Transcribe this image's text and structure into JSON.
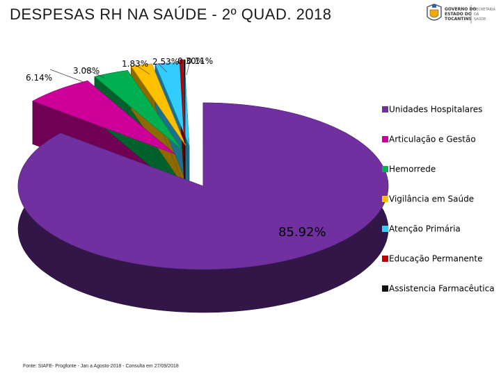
{
  "header": {
    "title": "DESPESAS RH NA SAÚDE - 2º QUAD. 2018",
    "logo_text": [
      "GOVERNO DO",
      "ESTADO DO",
      "TOCANTINS"
    ],
    "logo_side_text": [
      "SECRETARIA",
      "DA",
      "SAÚDE"
    ]
  },
  "chart_data": {
    "type": "pie",
    "title": "DESPESAS RH NA SAÚDE - 2º QUAD. 2018",
    "legend_position": "right",
    "slices": [
      {
        "name": "Unidades Hospitalares",
        "value": 85.92,
        "label": "85.92%",
        "color": "#7030a0"
      },
      {
        "name": "Articulação e Gestão",
        "value": 6.14,
        "label": "6.14%",
        "color": "#cc0099"
      },
      {
        "name": "Hemorrede",
        "value": 3.08,
        "label": "3.08%",
        "color": "#00b050"
      },
      {
        "name": "Vigilância em Saúde",
        "value": 1.83,
        "label": "1.83%",
        "color": "#ffc000"
      },
      {
        "name": "Atenção Primária",
        "value": 2.53,
        "label": "2.53%",
        "color": "#33ccff"
      },
      {
        "name": "Educação Permanente",
        "value": 0.3,
        "label": "0.30%",
        "color": "#c00000"
      },
      {
        "name": "Assistencia Farmacêutica",
        "value": 0.11,
        "label": "0.11%",
        "color": "#111111"
      }
    ]
  },
  "footer": {
    "source": "Fonte: SIAFE- Progfonte - Jan a Agosto-2018 - Consulta em 27/09/2018"
  }
}
